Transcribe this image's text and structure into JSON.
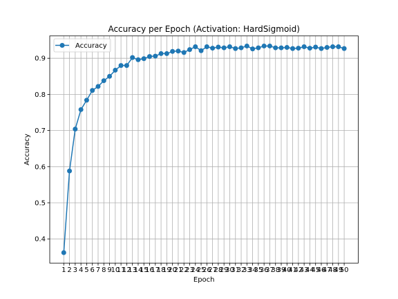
{
  "chart_data": {
    "type": "line",
    "title": "Accuracy per Epoch (Activation: HardSigmoid)",
    "xlabel": "Epoch",
    "ylabel": "Accuracy",
    "x": [
      1,
      2,
      3,
      4,
      5,
      6,
      7,
      8,
      9,
      10,
      11,
      12,
      13,
      14,
      15,
      16,
      17,
      18,
      19,
      20,
      21,
      22,
      23,
      24,
      25,
      26,
      27,
      28,
      29,
      30,
      31,
      32,
      33,
      34,
      35,
      36,
      37,
      38,
      39,
      40,
      41,
      42,
      43,
      44,
      45,
      46,
      47,
      48,
      49,
      50
    ],
    "x_tick_labels": [
      "1",
      "2",
      "3",
      "4",
      "5",
      "6",
      "7",
      "8",
      "9",
      "10",
      "11",
      "12",
      "13",
      "14",
      "15",
      "16",
      "17",
      "18",
      "19",
      "20",
      "21",
      "22",
      "23",
      "24",
      "25",
      "26",
      "27",
      "28",
      "29",
      "30",
      "31",
      "32",
      "33",
      "34",
      "35",
      "36",
      "37",
      "38",
      "39",
      "40",
      "41",
      "42",
      "43",
      "44",
      "45",
      "46",
      "47",
      "48",
      "49",
      "50"
    ],
    "y_ticks": [
      0.4,
      0.5,
      0.6,
      0.7,
      0.8,
      0.9
    ],
    "y_tick_labels": [
      "0.4",
      "0.5",
      "0.6",
      "0.7",
      "0.8",
      "0.9"
    ],
    "xlim": [
      -1.45,
      52.45
    ],
    "ylim": [
      0.333,
      0.962
    ],
    "grid": true,
    "legend_position": "upper-left",
    "series": [
      {
        "name": "Accuracy",
        "color": "#1f77b4",
        "marker": "circle",
        "values": [
          0.362,
          0.588,
          0.704,
          0.758,
          0.784,
          0.811,
          0.822,
          0.838,
          0.85,
          0.867,
          0.88,
          0.88,
          0.902,
          0.896,
          0.899,
          0.905,
          0.906,
          0.913,
          0.913,
          0.919,
          0.92,
          0.916,
          0.924,
          0.932,
          0.921,
          0.932,
          0.928,
          0.931,
          0.929,
          0.932,
          0.927,
          0.929,
          0.934,
          0.926,
          0.929,
          0.934,
          0.934,
          0.929,
          0.929,
          0.93,
          0.927,
          0.928,
          0.932,
          0.928,
          0.931,
          0.927,
          0.93,
          0.932,
          0.932,
          0.927
        ]
      }
    ]
  }
}
